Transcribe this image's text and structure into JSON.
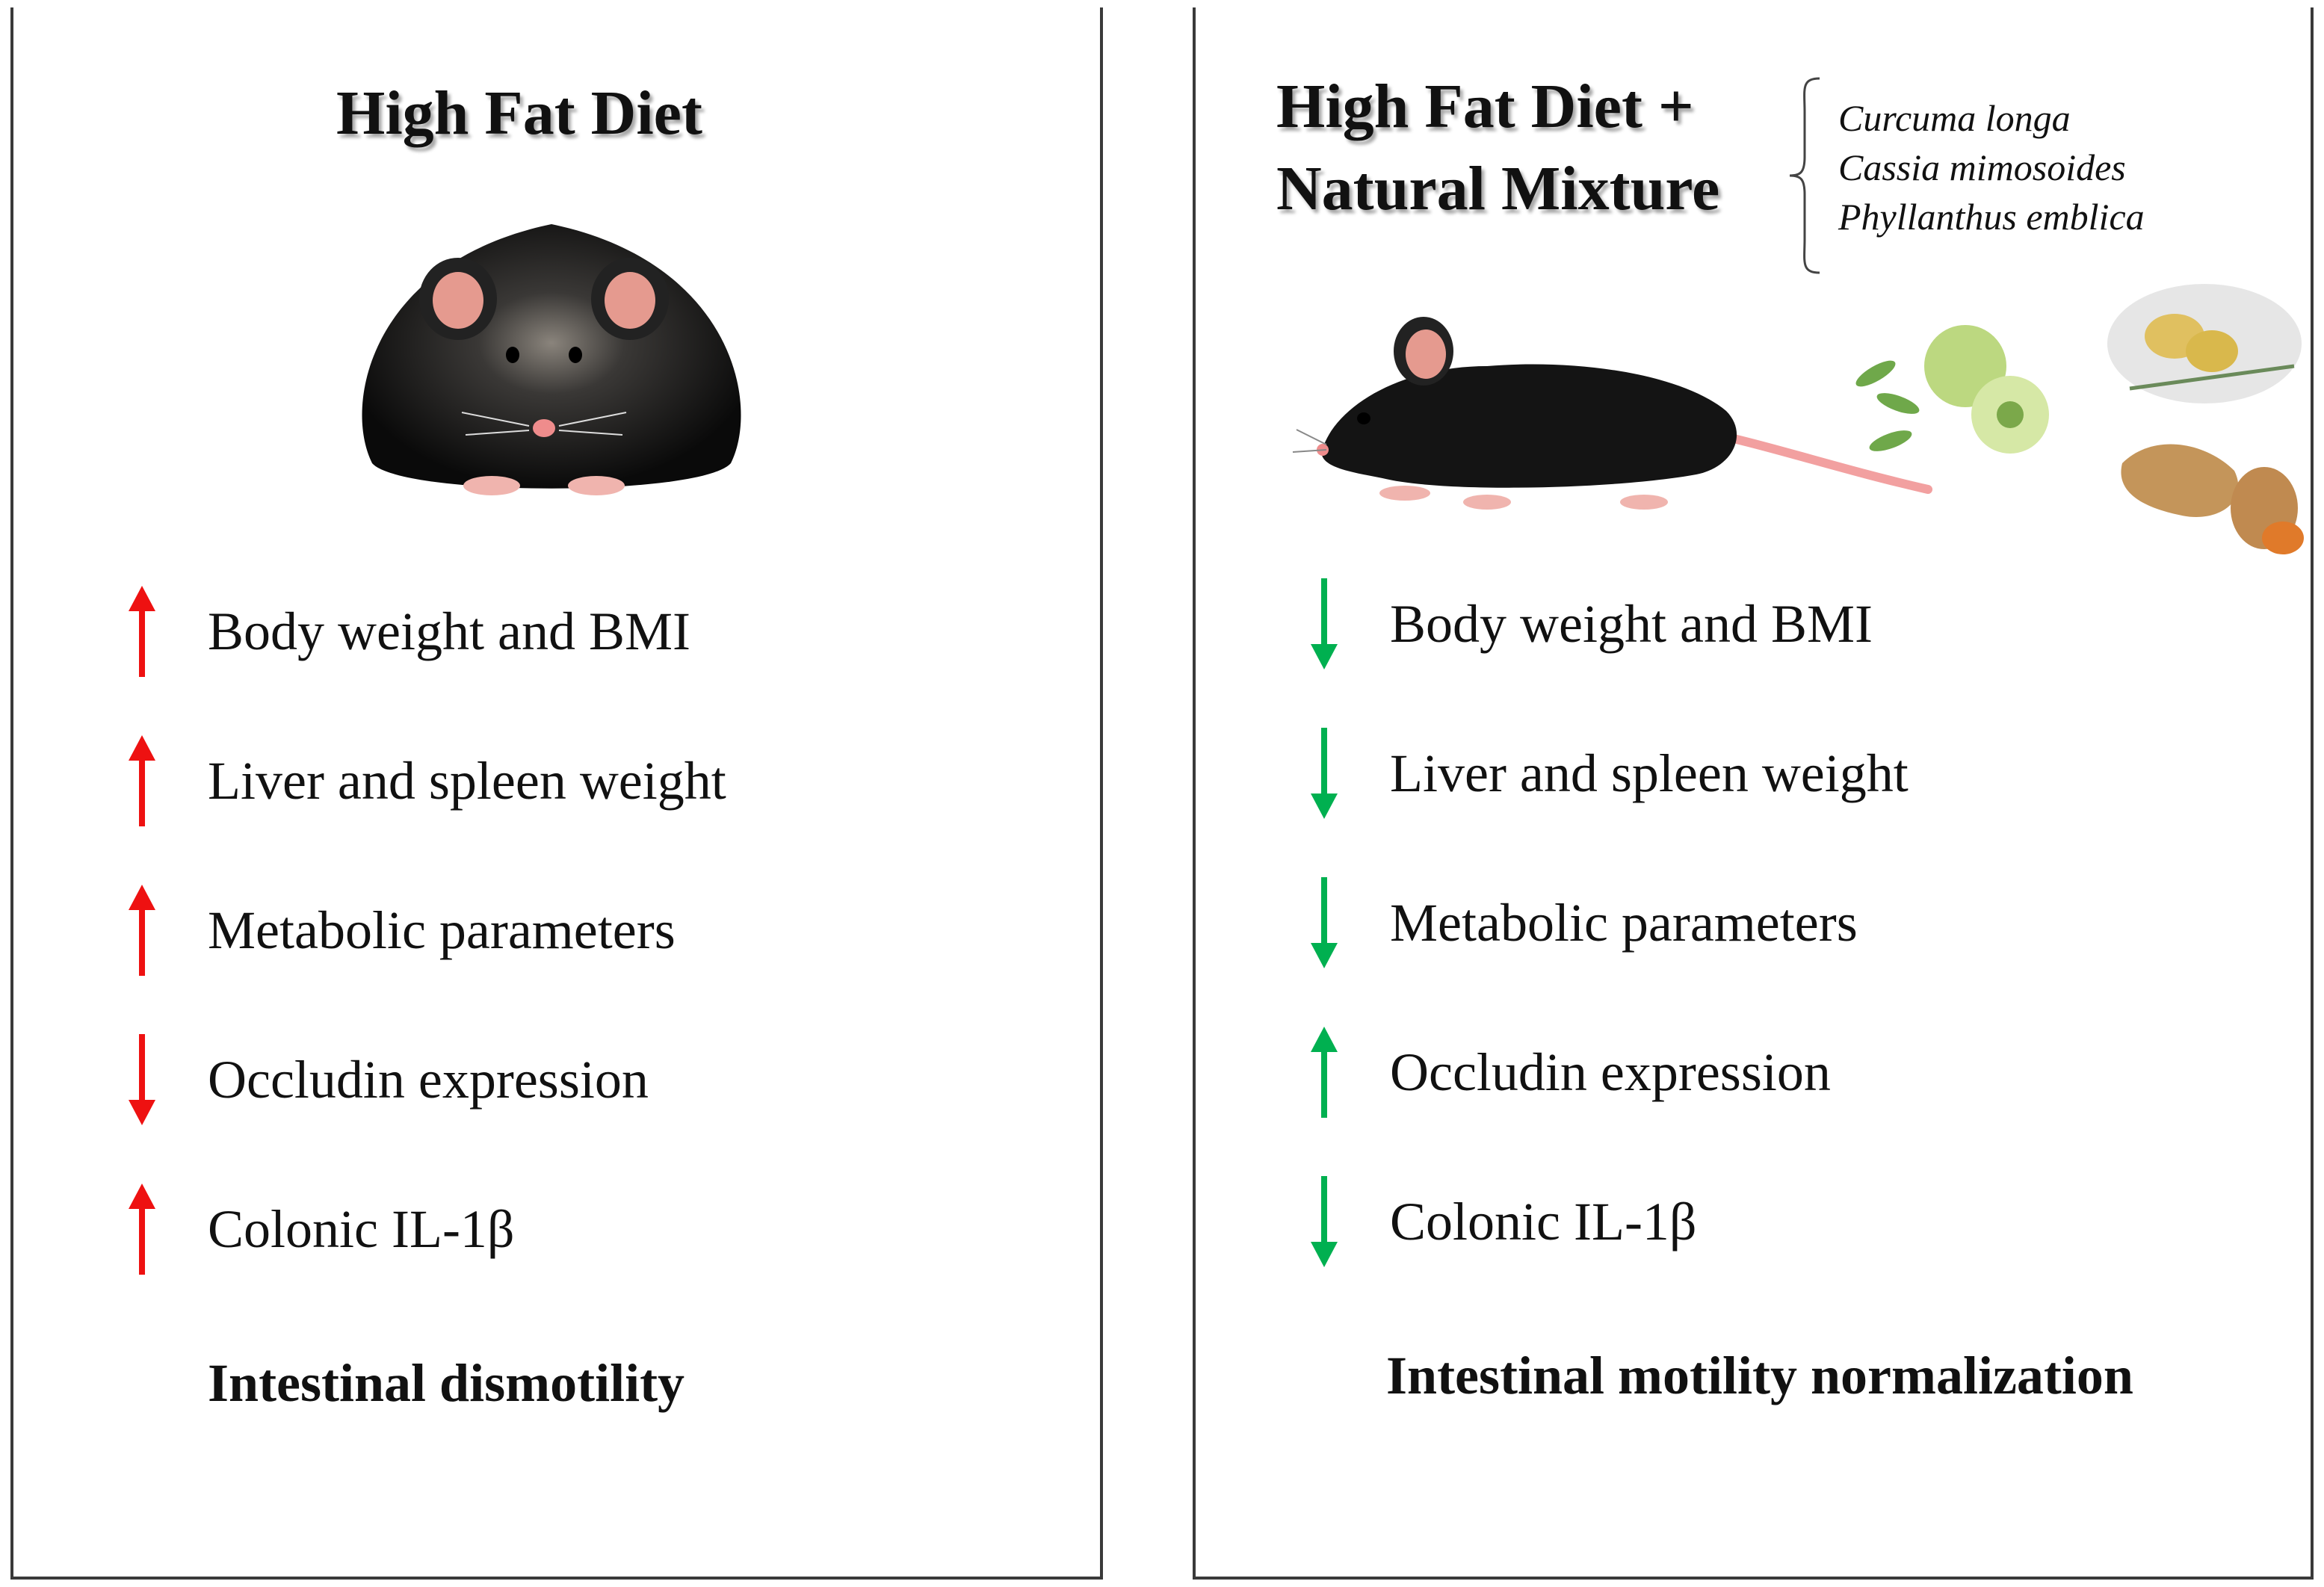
{
  "colors": {
    "up_red": "#ee1111",
    "down_green": "#00b050"
  },
  "left_panel": {
    "title": "High Fat Diet",
    "items": [
      {
        "label": "Body weight and BMI",
        "direction": "up"
      },
      {
        "label": "Liver and spleen weight",
        "direction": "up"
      },
      {
        "label": "Metabolic parameters",
        "direction": "up"
      },
      {
        "label": "Occludin expression",
        "direction": "down"
      },
      {
        "label": "Colonic IL-1β",
        "direction": "up"
      }
    ],
    "conclusion": "Intestinal dismotility"
  },
  "right_panel": {
    "title_line1": "High Fat Diet +",
    "title_line2": "Natural Mixture",
    "species": [
      "Curcuma longa",
      "Cassia mimosoides",
      "Phyllanthus emblica"
    ],
    "items": [
      {
        "label": "Body weight and BMI",
        "direction": "down"
      },
      {
        "label": "Liver and spleen weight",
        "direction": "down"
      },
      {
        "label": "Metabolic parameters",
        "direction": "down"
      },
      {
        "label": "Occludin expression",
        "direction": "up"
      },
      {
        "label": "Colonic IL-1β",
        "direction": "down"
      }
    ],
    "conclusion": "Intestinal motility normalization"
  }
}
